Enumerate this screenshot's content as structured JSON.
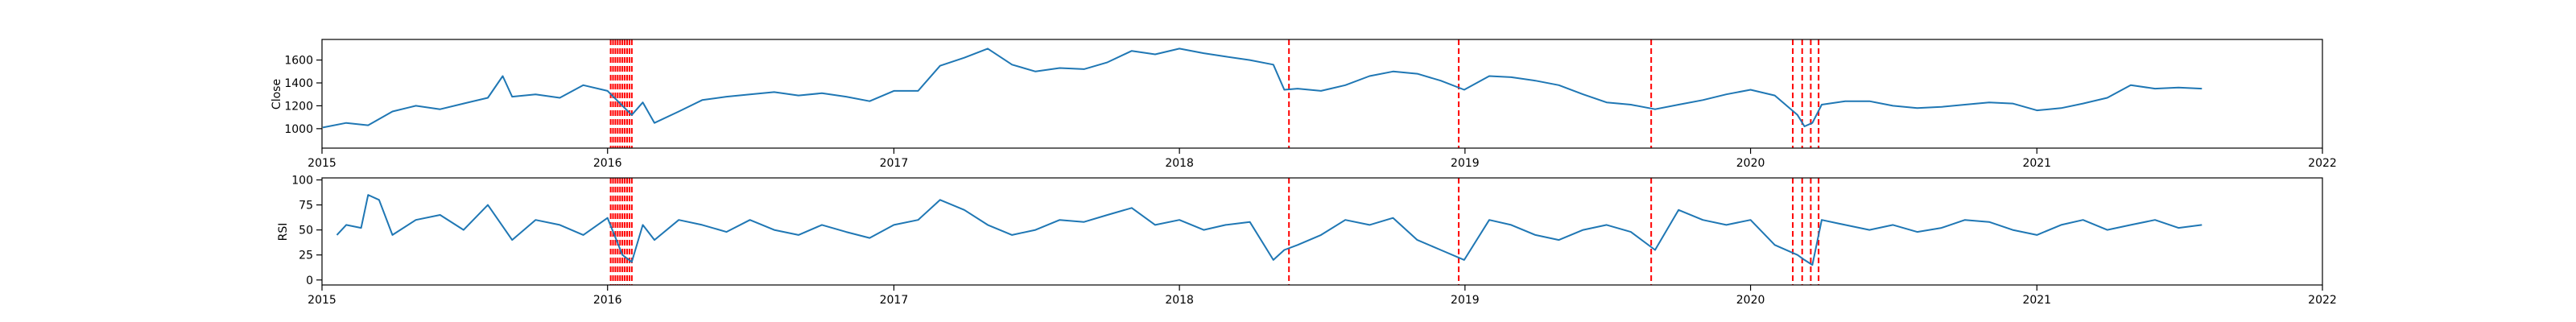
{
  "colors": {
    "series": "#1f77b4",
    "event_marker": "#ff0000",
    "background": "#ffffff"
  },
  "chart_data": [
    {
      "type": "line",
      "id": "close",
      "title": "",
      "xlabel": "",
      "ylabel": "Close",
      "xlim": [
        "2015-01-01",
        "2022-01-01"
      ],
      "ylim": [
        830,
        1780
      ],
      "grid": false,
      "x_ticks": [
        "2015",
        "2016",
        "2017",
        "2018",
        "2019",
        "2020",
        "2021",
        "2022"
      ],
      "y_ticks": [
        1000,
        1200,
        1400,
        1600
      ],
      "x": [
        "2015-01-02",
        "2015-02-01",
        "2015-03-01",
        "2015-04-01",
        "2015-05-01",
        "2015-06-01",
        "2015-07-01",
        "2015-08-01",
        "2015-08-20",
        "2015-09-01",
        "2015-10-01",
        "2015-11-01",
        "2015-12-01",
        "2016-01-01",
        "2016-01-20",
        "2016-02-01",
        "2016-02-15",
        "2016-03-01",
        "2016-04-01",
        "2016-05-01",
        "2016-06-01",
        "2016-07-01",
        "2016-08-01",
        "2016-09-01",
        "2016-10-01",
        "2016-11-01",
        "2016-12-01",
        "2017-01-01",
        "2017-02-01",
        "2017-03-01",
        "2017-04-01",
        "2017-05-01",
        "2017-06-01",
        "2017-07-01",
        "2017-08-01",
        "2017-09-01",
        "2017-10-01",
        "2017-11-01",
        "2017-12-01",
        "2018-01-01",
        "2018-02-01",
        "2018-03-01",
        "2018-04-01",
        "2018-05-01",
        "2018-05-15",
        "2018-06-01",
        "2018-07-01",
        "2018-08-01",
        "2018-09-01",
        "2018-10-01",
        "2018-11-01",
        "2018-12-01",
        "2018-12-31",
        "2019-02-01",
        "2019-03-01",
        "2019-04-01",
        "2019-05-01",
        "2019-06-01",
        "2019-07-01",
        "2019-08-01",
        "2019-09-01",
        "2019-10-01",
        "2019-11-01",
        "2019-12-01",
        "2020-01-01",
        "2020-02-01",
        "2020-03-01",
        "2020-03-10",
        "2020-03-20",
        "2020-04-01",
        "2020-05-01",
        "2020-06-01",
        "2020-07-01",
        "2020-08-01",
        "2020-09-01",
        "2020-10-01",
        "2020-11-01",
        "2020-12-01",
        "2021-01-01",
        "2021-02-01",
        "2021-03-01",
        "2021-04-01",
        "2021-05-01",
        "2021-06-01",
        "2021-07-01",
        "2021-07-31"
      ],
      "series": [
        {
          "values": [
            1010,
            1050,
            1030,
            1150,
            1200,
            1170,
            1220,
            1270,
            1460,
            1280,
            1300,
            1270,
            1380,
            1330,
            1200,
            1120,
            1230,
            1050,
            1150,
            1250,
            1280,
            1300,
            1320,
            1290,
            1310,
            1280,
            1240,
            1330,
            1330,
            1550,
            1620,
            1700,
            1560,
            1500,
            1530,
            1520,
            1580,
            1680,
            1650,
            1700,
            1660,
            1630,
            1600,
            1560,
            1340,
            1350,
            1330,
            1380,
            1460,
            1500,
            1480,
            1420,
            1340,
            1460,
            1450,
            1420,
            1380,
            1300,
            1230,
            1210,
            1170,
            1210,
            1250,
            1300,
            1340,
            1290,
            1120,
            1020,
            1050,
            1210,
            1240,
            1240,
            1200,
            1180,
            1190,
            1210,
            1230,
            1220,
            1160,
            1180,
            1220,
            1270,
            1380,
            1350,
            1360,
            1350
          ]
        }
      ]
    },
    {
      "type": "line",
      "id": "rsi",
      "title": "",
      "xlabel": "",
      "ylabel": "RSI",
      "xlim": [
        "2015-01-01",
        "2022-01-01"
      ],
      "ylim": [
        -5,
        102
      ],
      "grid": false,
      "x_ticks": [
        "2015",
        "2016",
        "2017",
        "2018",
        "2019",
        "2020",
        "2021",
        "2022"
      ],
      "y_ticks": [
        0,
        25,
        50,
        75,
        100
      ],
      "x": [
        "2015-01-20",
        "2015-02-01",
        "2015-02-20",
        "2015-03-01",
        "2015-03-15",
        "2015-04-01",
        "2015-05-01",
        "2015-06-01",
        "2015-07-01",
        "2015-08-01",
        "2015-09-01",
        "2015-10-01",
        "2015-11-01",
        "2015-12-01",
        "2016-01-01",
        "2016-01-20",
        "2016-02-01",
        "2016-02-15",
        "2016-03-01",
        "2016-04-01",
        "2016-05-01",
        "2016-06-01",
        "2016-07-01",
        "2016-08-01",
        "2016-09-01",
        "2016-10-01",
        "2016-11-01",
        "2016-12-01",
        "2017-01-01",
        "2017-02-01",
        "2017-03-01",
        "2017-04-01",
        "2017-05-01",
        "2017-06-01",
        "2017-07-01",
        "2017-08-01",
        "2017-09-01",
        "2017-10-01",
        "2017-11-01",
        "2017-12-01",
        "2018-01-01",
        "2018-02-01",
        "2018-03-01",
        "2018-04-01",
        "2018-05-01",
        "2018-05-15",
        "2018-06-01",
        "2018-07-01",
        "2018-08-01",
        "2018-09-01",
        "2018-10-01",
        "2018-11-01",
        "2018-12-01",
        "2018-12-31",
        "2019-02-01",
        "2019-03-01",
        "2019-04-01",
        "2019-05-01",
        "2019-06-01",
        "2019-07-01",
        "2019-08-01",
        "2019-09-01",
        "2019-10-01",
        "2019-11-01",
        "2019-12-01",
        "2020-01-01",
        "2020-02-01",
        "2020-03-01",
        "2020-03-10",
        "2020-03-20",
        "2020-04-01",
        "2020-05-01",
        "2020-06-01",
        "2020-07-01",
        "2020-08-01",
        "2020-09-01",
        "2020-10-01",
        "2020-11-01",
        "2020-12-01",
        "2021-01-01",
        "2021-02-01",
        "2021-03-01",
        "2021-04-01",
        "2021-05-01",
        "2021-06-01",
        "2021-07-01",
        "2021-07-31"
      ],
      "series": [
        {
          "values": [
            45,
            55,
            52,
            85,
            80,
            45,
            60,
            65,
            50,
            75,
            40,
            60,
            55,
            45,
            62,
            25,
            18,
            55,
            40,
            60,
            55,
            48,
            60,
            50,
            45,
            55,
            48,
            42,
            55,
            60,
            80,
            70,
            55,
            45,
            50,
            60,
            58,
            65,
            72,
            55,
            60,
            50,
            55,
            58,
            20,
            30,
            35,
            45,
            60,
            55,
            62,
            40,
            30,
            20,
            60,
            55,
            45,
            40,
            50,
            55,
            48,
            30,
            70,
            60,
            55,
            60,
            35,
            25,
            20,
            15,
            60,
            55,
            50,
            55,
            48,
            52,
            60,
            58,
            50,
            45,
            55,
            60,
            50,
            55,
            60,
            52,
            55
          ]
        }
      ]
    }
  ],
  "event_markers": {
    "dense_band": [
      "2016-01-05",
      "2016-01-08",
      "2016-01-11",
      "2016-01-14",
      "2016-01-17",
      "2016-01-20",
      "2016-01-23",
      "2016-01-26",
      "2016-01-29",
      "2016-02-01"
    ],
    "lines": [
      "2018-05-21",
      "2018-12-24",
      "2019-08-27",
      "2020-02-24",
      "2020-03-07",
      "2020-03-18",
      "2020-03-28"
    ]
  }
}
